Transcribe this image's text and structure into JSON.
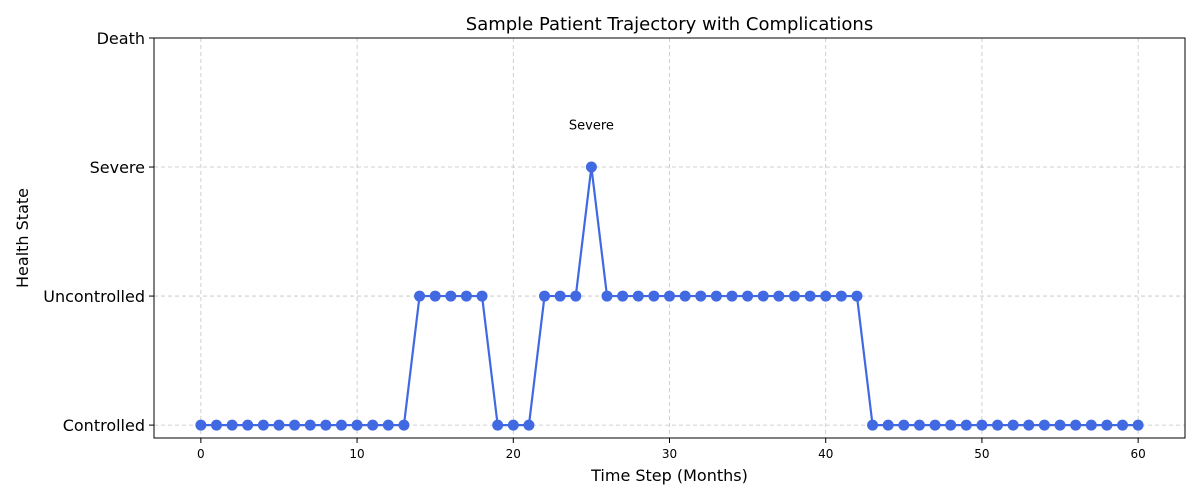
{
  "chart_data": {
    "type": "line",
    "title": "Sample Patient Trajectory with Complications",
    "xlabel": "Time Step (Months)",
    "ylabel": "Health State",
    "xlim": [
      -3,
      63
    ],
    "ylim": [
      -0.1,
      3
    ],
    "x_ticks": [
      0,
      10,
      20,
      30,
      40,
      50,
      60
    ],
    "y_ticks": [
      0,
      1,
      2,
      3
    ],
    "y_tick_labels": [
      "Controlled",
      "Uncontrolled",
      "Severe",
      "Death"
    ],
    "grid": true,
    "series": [
      {
        "color": "#4169e1",
        "x": [
          0,
          1,
          2,
          3,
          4,
          5,
          6,
          7,
          8,
          9,
          10,
          11,
          12,
          13,
          14,
          15,
          16,
          17,
          18,
          19,
          20,
          21,
          22,
          23,
          24,
          25,
          26,
          27,
          28,
          29,
          30,
          31,
          32,
          33,
          34,
          35,
          36,
          37,
          38,
          39,
          40,
          41,
          42,
          43,
          44,
          45,
          46,
          47,
          48,
          49,
          50,
          51,
          52,
          53,
          54,
          55,
          56,
          57,
          58,
          59,
          60
        ],
        "values": [
          0,
          0,
          0,
          0,
          0,
          0,
          0,
          0,
          0,
          0,
          0,
          0,
          0,
          0,
          1,
          1,
          1,
          1,
          1,
          0,
          0,
          0,
          1,
          1,
          1,
          2,
          1,
          1,
          1,
          1,
          1,
          1,
          1,
          1,
          1,
          1,
          1,
          1,
          1,
          1,
          1,
          1,
          1,
          0,
          0,
          0,
          0,
          0,
          0,
          0,
          0,
          0,
          0,
          0,
          0,
          0,
          0,
          0,
          0,
          0,
          0
        ]
      }
    ],
    "annotations": [
      {
        "text": "Severe",
        "x": 25,
        "y": 2.33
      }
    ]
  }
}
